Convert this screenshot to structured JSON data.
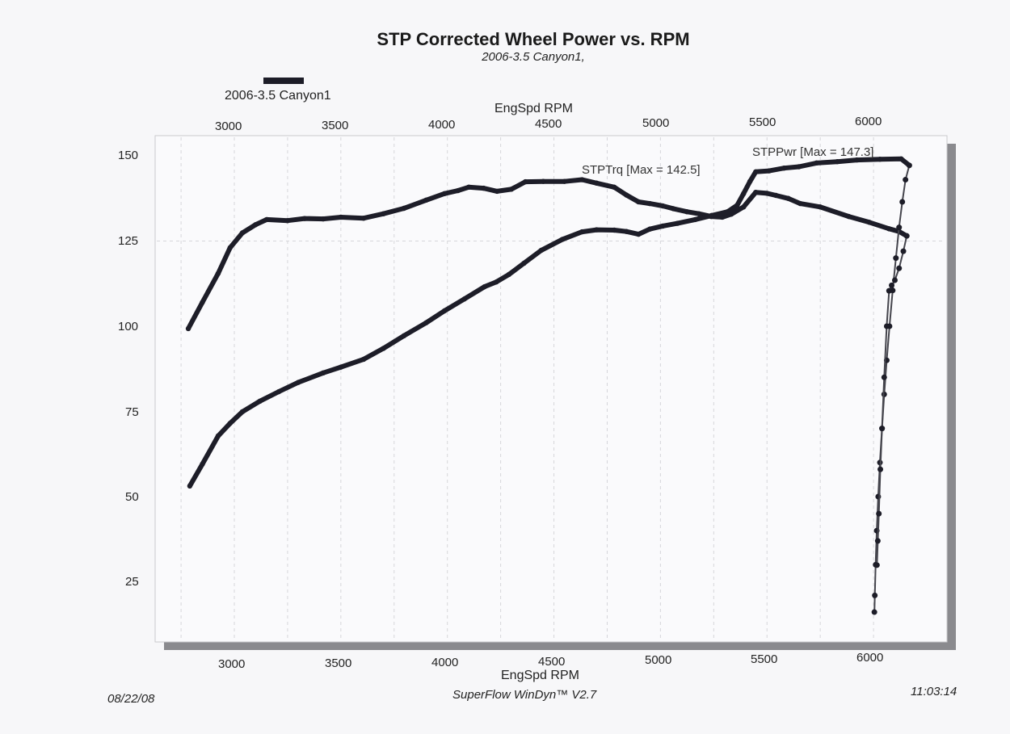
{
  "chart_data": {
    "type": "line",
    "title": "STP Corrected Wheel Power vs. RPM",
    "subtitle": "2006-3.5 Canyon1,",
    "xlabel": "EngSpd  RPM",
    "ylabel": "",
    "xlim": [
      2600,
      6350
    ],
    "ylim": [
      8,
      154
    ],
    "x_ticks": [
      3000,
      3500,
      4000,
      4500,
      5000,
      5500,
      6000
    ],
    "y_ticks": [
      25,
      50,
      75,
      100,
      125,
      150
    ],
    "grid": "vertical-dashed",
    "legend": {
      "position": "top-left",
      "entries": [
        "2006-3.5 Canyon1"
      ]
    },
    "series": [
      {
        "name": "STPTrq",
        "annotation": "STPTrq [Max = 142.5]",
        "max": 142.5,
        "x": [
          2784,
          2850,
          2924,
          2980,
          3038,
          3100,
          3152,
          3250,
          3330,
          3417,
          3500,
          3607,
          3700,
          3796,
          3900,
          3986,
          4050,
          4100,
          4170,
          4233,
          4300,
          4366,
          4450,
          4550,
          4632,
          4700,
          4783,
          4840,
          4897,
          4950,
          5011,
          5060,
          5124,
          5180,
          5238,
          5290,
          5333,
          5390,
          5447,
          5500,
          5542,
          5600,
          5656,
          5750,
          5884,
          5980,
          6073,
          6120,
          6156
        ],
        "y": [
          99.3,
          107.0,
          115.5,
          123.0,
          127.4,
          129.8,
          131.3,
          131.0,
          131.6,
          131.5,
          132.0,
          131.7,
          133.0,
          134.6,
          137.0,
          138.9,
          139.8,
          140.8,
          140.5,
          139.6,
          140.2,
          142.4,
          142.5,
          142.5,
          143.0,
          142.0,
          140.8,
          138.5,
          136.5,
          136.0,
          135.3,
          134.5,
          133.6,
          133.0,
          132.2,
          132.0,
          132.9,
          135.0,
          139.3,
          139.0,
          138.4,
          137.5,
          136.0,
          135.0,
          132.2,
          130.5,
          128.6,
          127.8,
          126.5
        ]
      },
      {
        "name": "STPPwr",
        "annotation": "STPPwr [Max = 147.3]",
        "max": 147.3,
        "x": [
          2791,
          2850,
          2924,
          2980,
          3038,
          3120,
          3209,
          3300,
          3417,
          3500,
          3607,
          3700,
          3796,
          3900,
          3986,
          4080,
          4175,
          4230,
          4289,
          4360,
          4441,
          4540,
          4632,
          4700,
          4783,
          4840,
          4897,
          4950,
          5011,
          5080,
          5163,
          5240,
          5315,
          5360,
          5390,
          5420,
          5447,
          5510,
          5580,
          5650,
          5732,
          5830,
          5922,
          6030,
          6130,
          6168
        ],
        "y": [
          53.1,
          59.5,
          67.8,
          71.5,
          74.9,
          78.0,
          80.8,
          83.5,
          86.3,
          88.0,
          90.3,
          93.5,
          97.2,
          101.0,
          104.5,
          108.0,
          111.6,
          113.0,
          115.2,
          118.5,
          122.3,
          125.5,
          127.7,
          128.3,
          128.2,
          127.8,
          127.0,
          128.5,
          129.4,
          130.2,
          131.3,
          132.5,
          133.6,
          135.5,
          138.9,
          142.5,
          145.3,
          145.6,
          146.4,
          146.8,
          147.9,
          148.3,
          148.8,
          149.0,
          149.1,
          147.2
        ]
      },
      {
        "name": "STPPwr coast-down",
        "x": [
          6168,
          6150,
          6135,
          6120,
          6105,
          6090,
          6075,
          6062,
          6050,
          6040,
          6030,
          6022,
          6015,
          6010,
          6006,
          6004
        ],
        "y": [
          147.2,
          143.0,
          136.5,
          129.0,
          120.0,
          110.5,
          100.0,
          90.0,
          80.0,
          70.0,
          60.0,
          50.0,
          40.0,
          30.0,
          21.0,
          16.1
        ]
      },
      {
        "name": "STPTrq coast-down",
        "x": [
          6156,
          6140,
          6120,
          6100,
          6085,
          6073,
          6062,
          6050,
          6040,
          6032,
          6025,
          6020,
          6016
        ],
        "y": [
          126.5,
          122.0,
          117.0,
          113.5,
          112.0,
          110.4,
          100.0,
          85.0,
          70.0,
          58.0,
          45.0,
          37.0,
          29.9
        ]
      }
    ]
  },
  "header": {
    "title": "STP Corrected Wheel Power vs. RPM",
    "subtitle": "2006-3.5 Canyon1,"
  },
  "legend": {
    "label": "2006-3.5 Canyon1"
  },
  "axes": {
    "x_title": "EngSpd  RPM",
    "x_ticks": [
      "3000",
      "3500",
      "4000",
      "4500",
      "5000",
      "5500",
      "6000"
    ],
    "y_ticks": [
      "150",
      "125",
      "100",
      "75",
      "50",
      "25"
    ]
  },
  "annotations": {
    "trq": "STPTrq [Max = 142.5]",
    "pwr": "STPPwr [Max = 147.3]"
  },
  "footer": {
    "date": "08/22/08",
    "software": "SuperFlow WinDyn™ V2.7",
    "time": "11:03:14"
  },
  "colors": {
    "curve": "#1d1d28",
    "shadow": "#8a8a8e",
    "frame": "#c9c9cd",
    "grid": "#d6d6da"
  }
}
